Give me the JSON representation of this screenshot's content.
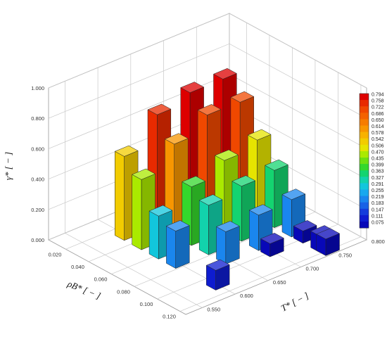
{
  "chart_data": {
    "type": "bar3d",
    "z_axis": {
      "label": "γ* [ − ]",
      "ticks": [
        "0.000",
        "0.200",
        "0.400",
        "0.600",
        "0.800",
        "1.000"
      ],
      "range": [
        0,
        1
      ]
    },
    "rho_axis": {
      "label": "ρB* [ − ]",
      "ticks": [
        "0.020",
        "0.040",
        "0.060",
        "0.080",
        "0.100",
        "0.120"
      ],
      "range": [
        0.005,
        0.125
      ]
    },
    "t_axis": {
      "label": "T* [ − ]",
      "ticks": [
        "0.550",
        "0.600",
        "0.650",
        "0.700",
        "0.750",
        "0.800"
      ],
      "range": [
        0.525,
        0.8
      ]
    },
    "grid": true,
    "colorbar": {
      "placement": "right",
      "labels": [
        "0.794",
        "0.758",
        "0.722",
        "0.686",
        "0.650",
        "0.614",
        "0.578",
        "0.542",
        "0.506",
        "0.470",
        "0.435",
        "0.399",
        "0.363",
        "0.327",
        "0.291",
        "0.255",
        "0.219",
        "0.183",
        "0.147",
        "0.111",
        "0.075"
      ],
      "colors": [
        "#dd0000",
        "#e82a00",
        "#f04800",
        "#f46200",
        "#f67c00",
        "#f89600",
        "#f8b200",
        "#f2cc00",
        "#e6e400",
        "#aaea00",
        "#6ee010",
        "#34d82c",
        "#14d470",
        "#12d2ac",
        "#12c6dc",
        "#18a8ee",
        "#1a86ee",
        "#1862e6",
        "#143cdc",
        "#0e1cd0",
        "#0808b8"
      ]
    },
    "points": [
      {
        "rho": 0.03,
        "T": 0.6,
        "gamma": 0.553
      },
      {
        "rho": 0.03,
        "T": 0.65,
        "gamma": 0.738
      },
      {
        "rho": 0.03,
        "T": 0.7,
        "gamma": 0.794
      },
      {
        "rho": 0.03,
        "T": 0.75,
        "gamma": 0.794
      },
      {
        "rho": 0.045,
        "T": 0.6,
        "gamma": 0.462
      },
      {
        "rho": 0.045,
        "T": 0.65,
        "gamma": 0.606
      },
      {
        "rho": 0.045,
        "T": 0.7,
        "gamma": 0.708
      },
      {
        "rho": 0.045,
        "T": 0.75,
        "gamma": 0.703
      },
      {
        "rho": 0.06,
        "T": 0.6,
        "gamma": 0.283
      },
      {
        "rho": 0.06,
        "T": 0.65,
        "gamma": 0.386
      },
      {
        "rho": 0.06,
        "T": 0.7,
        "gamma": 0.47
      },
      {
        "rho": 0.06,
        "T": 0.75,
        "gamma": 0.515
      },
      {
        "rho": 0.075,
        "T": 0.6,
        "gamma": 0.245
      },
      {
        "rho": 0.075,
        "T": 0.65,
        "gamma": 0.326
      },
      {
        "rho": 0.075,
        "T": 0.7,
        "gamma": 0.362
      },
      {
        "rho": 0.075,
        "T": 0.75,
        "gamma": 0.377
      },
      {
        "rho": 0.09,
        "T": 0.65,
        "gamma": 0.213
      },
      {
        "rho": 0.09,
        "T": 0.7,
        "gamma": 0.233
      },
      {
        "rho": 0.09,
        "T": 0.75,
        "gamma": 0.246
      },
      {
        "rho": 0.1,
        "T": 0.7,
        "gamma": 0.086
      },
      {
        "rho": 0.1,
        "T": 0.75,
        "gamma": 0.08
      },
      {
        "rho": 0.11,
        "T": 0.6,
        "gamma": 0.13
      },
      {
        "rho": 0.115,
        "T": 0.75,
        "gamma": 0.108
      },
      {
        "rho": 0.12,
        "T": 0.75,
        "gamma": 0.109
      }
    ]
  }
}
